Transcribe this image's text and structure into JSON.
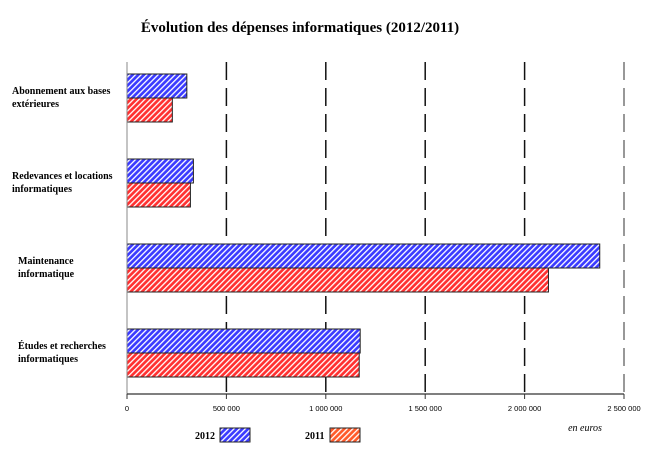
{
  "chart_data": {
    "type": "bar",
    "orientation": "horizontal",
    "title": "Évolution des dépenses informatiques (2012/2011)",
    "categories": [
      [
        "Abonnement aux bases",
        "extérieures"
      ],
      [
        "Redevances et locations",
        "informatiques"
      ],
      [
        "Maintenance",
        "informatique"
      ],
      [
        "Études et recherches",
        "informatiques"
      ]
    ],
    "series": [
      {
        "name": "2012",
        "color": "#3a3aff",
        "values": [
          301000,
          334000,
          2378000,
          1173000
        ]
      },
      {
        "name": "2011",
        "color": "#ff3a3a",
        "values": [
          228000,
          319000,
          2120000,
          1168000
        ]
      }
    ],
    "xlim": [
      0,
      2500000
    ],
    "xticks": [
      0,
      500000,
      1000000,
      1500000,
      2000000,
      2500000
    ],
    "xtick_labels": [
      "0",
      "500 000",
      "1 000 000",
      "1 500 000",
      "2 000 000",
      "2 500 000"
    ],
    "xlabel": "en euros",
    "grid": "vertical dashed",
    "legend": "bottom"
  }
}
